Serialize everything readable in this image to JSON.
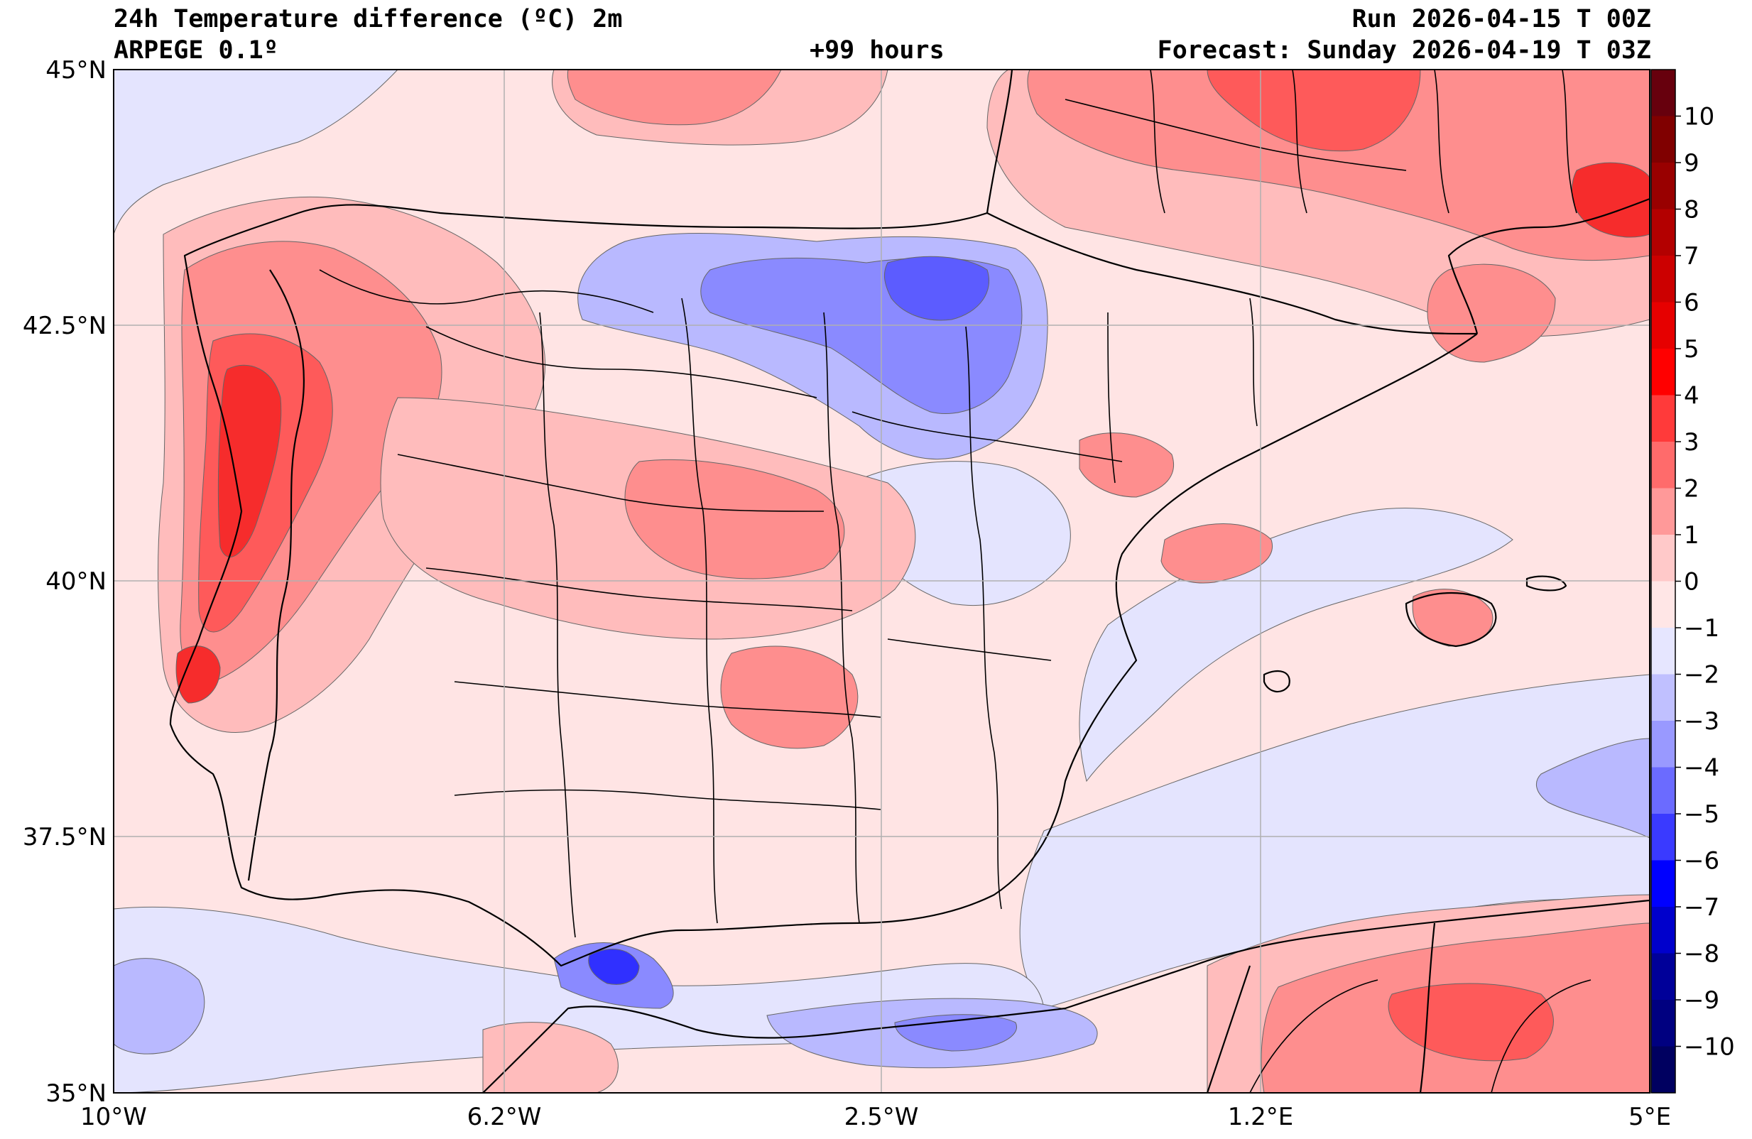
{
  "header": {
    "title": "24h Temperature difference (ºC) 2m",
    "model": "ARPEGE 0.1º",
    "lead_time": "+99 hours",
    "run": "Run 2026-04-15 T 00Z",
    "forecast": "Forecast: Sunday 2026-04-19 T 03Z"
  },
  "axes": {
    "lat_labels": [
      "45°N",
      "42.5°N",
      "40°N",
      "37.5°N",
      "35°N"
    ],
    "lon_labels": [
      "10°W",
      "6.2°W",
      "2.5°W",
      "1.2°E",
      "5°E"
    ]
  },
  "colorbar": {
    "ticks": [
      "10",
      "9",
      "8",
      "7",
      "6",
      "5",
      "4",
      "3",
      "2",
      "1",
      "0",
      "−1",
      "−2",
      "−3",
      "−4",
      "−5",
      "−6",
      "−7",
      "−8",
      "−9",
      "−10"
    ],
    "colors": [
      "#67000d",
      "#800000",
      "#990000",
      "#b30000",
      "#cc0000",
      "#e60000",
      "#ff0000",
      "#ff3a3a",
      "#ff6b6b",
      "#ff9999",
      "#ffc9c9",
      "#ffe6e6",
      "#e6e6ff",
      "#c0c0ff",
      "#9999ff",
      "#6b6bff",
      "#3a3aff",
      "#0000ff",
      "#0000cc",
      "#000099",
      "#000080",
      "#000060"
    ]
  },
  "colors": {
    "neutral_warm": "#ffe4e4",
    "neutral_cool": "#e4e4fe",
    "warm_1": "#ffbcbc",
    "warm_2": "#fe8e8e",
    "warm_3": "#fe5a5a",
    "warm_4": "#f62c2c",
    "cool_1": "#b9b9ff",
    "cool_2": "#8a8aff",
    "cool_3": "#5c5cff",
    "border": "#000000",
    "grid": "#b0b0b0"
  }
}
